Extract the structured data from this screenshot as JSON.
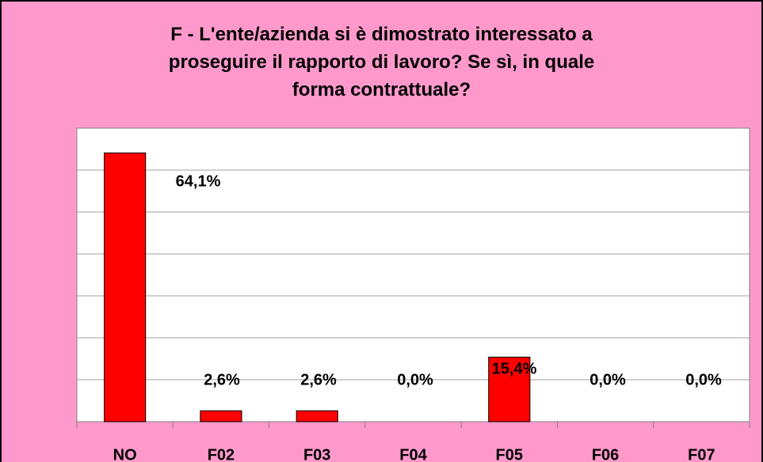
{
  "chart_data": {
    "type": "bar",
    "title": "F - L'ente/azienda si è dimostrato interessato a\nproseguire il rapporto di lavoro? Se sì, in quale\nforma contrattuale?",
    "categories": [
      "NO",
      "F02",
      "F03",
      "F04",
      "F05",
      "F06",
      "F07"
    ],
    "values": [
      64.1,
      2.6,
      2.6,
      0,
      15.4,
      0,
      0
    ],
    "value_labels": [
      "64,1%",
      "2,6%",
      "2,6%",
      "0,0%",
      "15,4%",
      "0,0%",
      "0,0%"
    ],
    "color": "#ff0000",
    "ylim": [
      0,
      70
    ],
    "yticks": [
      0,
      10,
      20,
      30,
      40,
      50,
      60,
      70
    ],
    "grid": true
  }
}
